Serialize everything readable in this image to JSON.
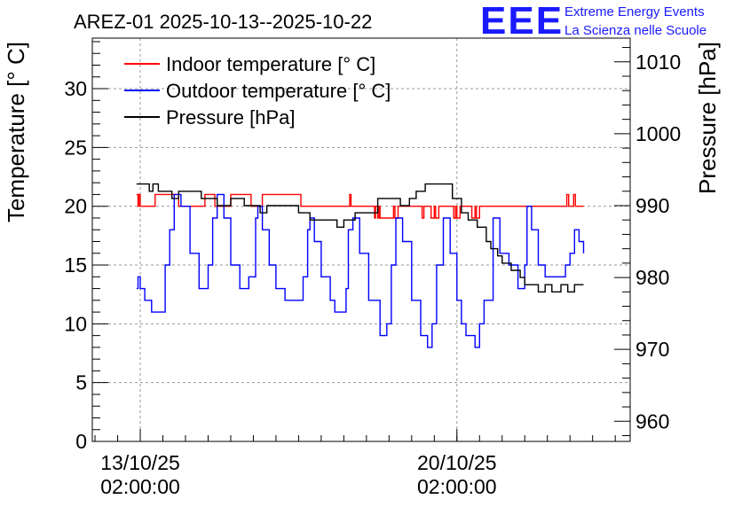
{
  "chart_data": {
    "type": "line",
    "title": "AREZ-01 2025-10-13--2025-10-22",
    "ylabel": "Temperature [° C]",
    "y2label": "Pressure [hPa]",
    "xlabel": "",
    "ylim": [
      0,
      34.3
    ],
    "y2lim": [
      957.2,
      1013.3
    ],
    "xlim": [
      -1.06,
      10.83
    ],
    "yticks": [
      0,
      5,
      10,
      15,
      20,
      25,
      30
    ],
    "y2ticks": [
      960,
      970,
      980,
      990,
      1000,
      1010
    ],
    "xticks": [
      {
        "x": 0,
        "date": "13/10/25",
        "time": "02:00:00"
      },
      {
        "x": 7,
        "date": "20/10/25",
        "time": "02:00:00"
      }
    ],
    "grid": true,
    "legend_position": "top-left",
    "logo": {
      "mark": "EEE",
      "line1": "Extreme Energy Events",
      "line2": "La Scienza nelle Scuole",
      "color": "#1a1aff"
    },
    "series": [
      {
        "name": "Indoor temperature [° C]",
        "axis": "left",
        "color": "#ff0000",
        "x": [
          -0.08,
          -0.05,
          -0.03,
          0.0,
          0.3,
          0.33,
          0.6,
          0.8,
          0.85,
          1.4,
          1.43,
          1.6,
          1.65,
          2.0,
          2.4,
          2.45,
          2.7,
          3.5,
          3.55,
          3.7,
          3.73,
          4.6,
          4.63,
          4.66,
          5.15,
          5.18,
          5.2,
          5.25,
          5.28,
          5.3,
          5.6,
          5.63,
          5.7,
          5.75,
          6.2,
          6.23,
          6.27,
          6.4,
          6.43,
          6.5,
          6.53,
          6.6,
          6.63,
          6.9,
          6.93,
          6.97,
          7.0,
          7.03,
          7.07,
          7.3,
          7.33,
          7.4,
          7.43,
          7.5,
          7.53,
          7.8,
          9.4,
          9.43,
          9.47,
          9.55,
          9.58,
          9.62,
          9.8
        ],
        "y": [
          21,
          20,
          21,
          20,
          20,
          21,
          21,
          21,
          20,
          20,
          21,
          21,
          20,
          21,
          21,
          20,
          21,
          21,
          20,
          20,
          20,
          20,
          21,
          20,
          20,
          19,
          20,
          19,
          20,
          19,
          20,
          19,
          20,
          20,
          20,
          19,
          20,
          20,
          19,
          20,
          19,
          20,
          20,
          20,
          19,
          20,
          19,
          19,
          20,
          20,
          19,
          20,
          19,
          20,
          20,
          20,
          20,
          21,
          20,
          20,
          21,
          20,
          20
        ]
      },
      {
        "name": "Outdoor temperature [° C]",
        "axis": "left",
        "color": "#0000ff",
        "x": [
          -0.08,
          -0.05,
          0.0,
          0.1,
          0.25,
          0.45,
          0.55,
          0.65,
          0.75,
          0.9,
          1.1,
          1.3,
          1.45,
          1.5,
          1.6,
          1.7,
          1.85,
          2.0,
          2.2,
          2.4,
          2.55,
          2.6,
          2.7,
          2.85,
          3.0,
          3.2,
          3.4,
          3.6,
          3.7,
          3.75,
          3.85,
          4.0,
          4.2,
          4.3,
          4.4,
          4.55,
          4.6,
          4.7,
          4.85,
          5.05,
          5.3,
          5.45,
          5.55,
          5.65,
          5.8,
          6.0,
          6.2,
          6.35,
          6.45,
          6.55,
          6.7,
          6.85,
          7.0,
          7.1,
          7.2,
          7.4,
          7.5,
          7.6,
          7.8,
          7.95,
          8.15,
          8.35,
          8.45,
          8.5,
          8.55,
          8.65,
          8.8,
          8.95,
          9.25,
          9.4,
          9.5,
          9.6,
          9.7,
          9.8
        ],
        "y": [
          13,
          14,
          13,
          12,
          11,
          11,
          15,
          18,
          21,
          20,
          16,
          13,
          13,
          15,
          19,
          21,
          19,
          15,
          13,
          14,
          19,
          20,
          18,
          15,
          13,
          12,
          12,
          14,
          18,
          19,
          17,
          14,
          12,
          11,
          11,
          13,
          18,
          19,
          16,
          12,
          9,
          10,
          15,
          19,
          17,
          12,
          9,
          8,
          10,
          15,
          19,
          16,
          12,
          10,
          9,
          8,
          10,
          12,
          19,
          16,
          15,
          13,
          13,
          15,
          20,
          18,
          15,
          14,
          14,
          15,
          16,
          18,
          17,
          16
        ]
      },
      {
        "name": "Pressure [hPa]",
        "axis": "right",
        "color": "#000000",
        "x": [
          -0.08,
          0.2,
          0.28,
          0.4,
          0.55,
          0.7,
          0.85,
          1.2,
          1.35,
          1.5,
          1.7,
          2.0,
          2.3,
          2.5,
          2.65,
          2.8,
          3.0,
          3.5,
          3.75,
          3.9,
          4.2,
          4.35,
          4.5,
          4.75,
          5.1,
          5.25,
          5.4,
          5.55,
          5.75,
          5.95,
          6.1,
          6.3,
          6.5,
          6.6,
          6.7,
          6.9,
          7.1,
          7.25,
          7.45,
          7.65,
          7.75,
          7.9,
          8.0,
          8.2,
          8.4,
          8.5,
          8.6,
          8.7,
          8.8,
          8.95,
          9.1,
          9.3,
          9.45,
          9.6,
          9.8
        ],
        "y": [
          993,
          992,
          993,
          992,
          992,
          991,
          992,
          992,
          991,
          991,
          990,
          991,
          990,
          990,
          989,
          990,
          990,
          989,
          988,
          988,
          988,
          987,
          988,
          989,
          989,
          991,
          991,
          991,
          990,
          991,
          992,
          993,
          993,
          993,
          993,
          991,
          989,
          988,
          987,
          985,
          984,
          983,
          982,
          981,
          980,
          979,
          979,
          979,
          978,
          979,
          978,
          979,
          978,
          979,
          979
        ]
      }
    ]
  }
}
